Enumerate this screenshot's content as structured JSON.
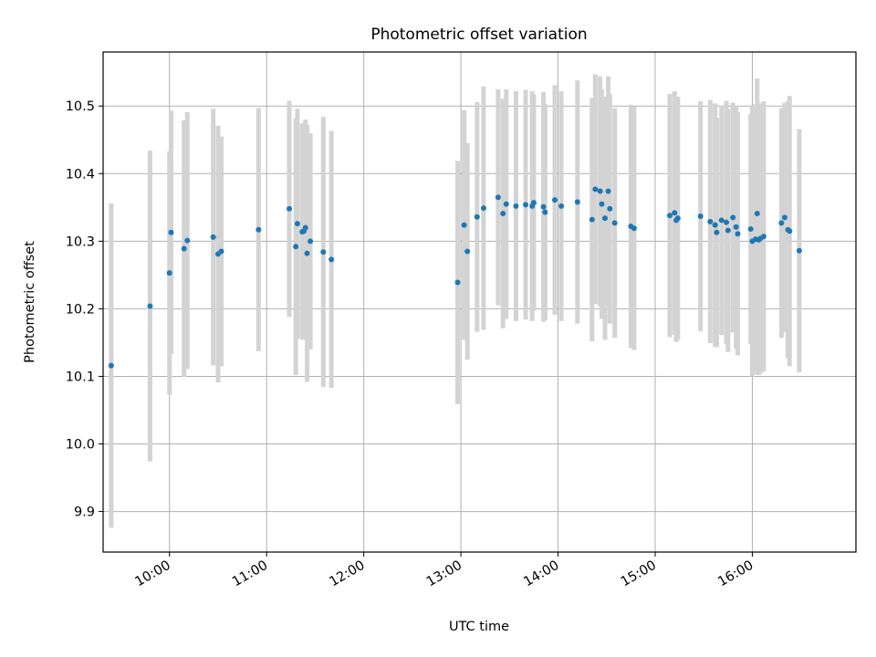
{
  "chart_data": {
    "type": "scatter",
    "title": "Photometric offset variation",
    "xlabel": "UTC time",
    "ylabel": "Photometric offset",
    "xlim": [
      "09:19",
      "17:04"
    ],
    "ylim": [
      9.84,
      10.58
    ],
    "grid": true,
    "x_ticks": [
      "10:00",
      "11:00",
      "12:00",
      "13:00",
      "14:00",
      "15:00",
      "16:00"
    ],
    "y_ticks": [
      "9.9",
      "10.0",
      "10.1",
      "10.2",
      "10.3",
      "10.4",
      "10.5"
    ],
    "colors": {
      "point": "#1f77b4",
      "errorbar": "#d3d3d3",
      "grid": "#b0b0b0"
    },
    "series": [
      {
        "x": [
          "09:24",
          "09:48",
          "10:00",
          "10:01",
          "10:09",
          "10:11",
          "10:27",
          "10:30",
          "10:32",
          "10:55",
          "11:14",
          "11:18",
          "11:19",
          "11:22",
          "11:23",
          "11:24",
          "11:25",
          "11:27",
          "11:35",
          "11:40",
          "12:58",
          "13:02",
          "13:04",
          "13:10",
          "13:14",
          "13:23",
          "13:26",
          "13:28",
          "13:34",
          "13:40",
          "13:44",
          "13:45",
          "13:51",
          "13:52",
          "13:58",
          "14:02",
          "14:12",
          "14:21",
          "14:23",
          "14:26",
          "14:27",
          "14:29",
          "14:31",
          "14:32",
          "14:35",
          "14:45",
          "14:47",
          "15:09",
          "15:12",
          "15:13",
          "15:14",
          "15:28",
          "15:34",
          "15:37",
          "15:38",
          "15:41",
          "15:44",
          "15:45",
          "15:48",
          "15:50",
          "15:51",
          "15:59",
          "16:00",
          "16:02",
          "16:03",
          "16:04",
          "16:05",
          "16:07",
          "16:18",
          "16:20",
          "16:22",
          "16:23",
          "16:29"
        ],
        "y": [
          10.116,
          10.204,
          10.253,
          10.313,
          10.289,
          10.301,
          10.306,
          10.281,
          10.285,
          10.317,
          10.348,
          10.292,
          10.326,
          10.314,
          10.315,
          10.32,
          10.282,
          10.3,
          10.284,
          10.273,
          10.239,
          10.324,
          10.285,
          10.336,
          10.349,
          10.365,
          10.341,
          10.355,
          10.352,
          10.354,
          10.352,
          10.357,
          10.351,
          10.343,
          10.361,
          10.352,
          10.358,
          10.332,
          10.377,
          10.374,
          10.355,
          10.334,
          10.374,
          10.348,
          10.327,
          10.322,
          10.319,
          10.338,
          10.342,
          10.331,
          10.334,
          10.337,
          10.329,
          10.324,
          10.313,
          10.331,
          10.328,
          10.316,
          10.335,
          10.321,
          10.311,
          10.318,
          10.3,
          10.303,
          10.341,
          10.302,
          10.304,
          10.307,
          10.327,
          10.335,
          10.317,
          10.315,
          10.286
        ],
        "yerr": [
          0.24,
          0.23,
          0.18,
          0.18,
          0.19,
          0.19,
          0.19,
          0.19,
          0.17,
          0.18,
          0.16,
          0.19,
          0.17,
          0.16,
          0.16,
          0.16,
          0.19,
          0.16,
          0.2,
          0.19,
          0.18,
          0.17,
          0.16,
          0.17,
          0.18,
          0.16,
          0.17,
          0.17,
          0.17,
          0.17,
          0.17,
          0.16,
          0.17,
          0.16,
          0.17,
          0.17,
          0.18,
          0.18,
          0.17,
          0.17,
          0.17,
          0.18,
          0.17,
          0.17,
          0.17,
          0.18,
          0.18,
          0.18,
          0.18,
          0.18,
          0.18,
          0.17,
          0.18,
          0.18,
          0.17,
          0.17,
          0.18,
          0.18,
          0.17,
          0.18,
          0.18,
          0.17,
          0.2,
          0.2,
          0.2,
          0.2,
          0.2,
          0.2,
          0.17,
          0.17,
          0.19,
          0.2,
          0.18
        ]
      }
    ]
  }
}
